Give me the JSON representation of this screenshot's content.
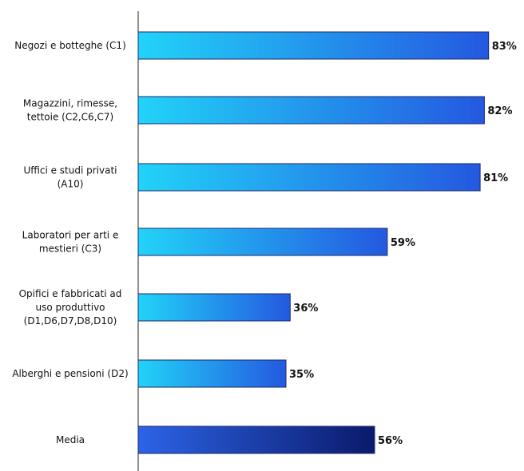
{
  "chart_data": {
    "type": "bar",
    "orientation": "horizontal",
    "categories": [
      [
        "Negozi e botteghe (C1)"
      ],
      [
        "Magazzini, rimesse,",
        "tettoie  (C2,C6,C7)"
      ],
      [
        "Uffici e studi privati",
        "(A10)"
      ],
      [
        "Laboratori per arti e",
        "mestieri (C3)"
      ],
      [
        "Opifici e fabbricati ad",
        "uso produttivo",
        "(D1,D6,D7,D8,D10)"
      ],
      [
        "Alberghi e pensioni (D2)"
      ],
      [
        "Media"
      ]
    ],
    "values": [
      83,
      82,
      81,
      59,
      36,
      35,
      56
    ],
    "value_labels": [
      "83%",
      "82%",
      "81%",
      "59%",
      "36%",
      "35%",
      "56%"
    ],
    "xlim": [
      0,
      84
    ],
    "grid": false,
    "legend": "none",
    "colors": {
      "bar_start": "#22d3f8",
      "bar_end": "#2458e0",
      "highlight_start": "#2c63e6",
      "highlight_end": "#0b1a6b",
      "bar_border": "#1a2a6c",
      "axis": "#222222"
    },
    "highlight_index": 6
  }
}
